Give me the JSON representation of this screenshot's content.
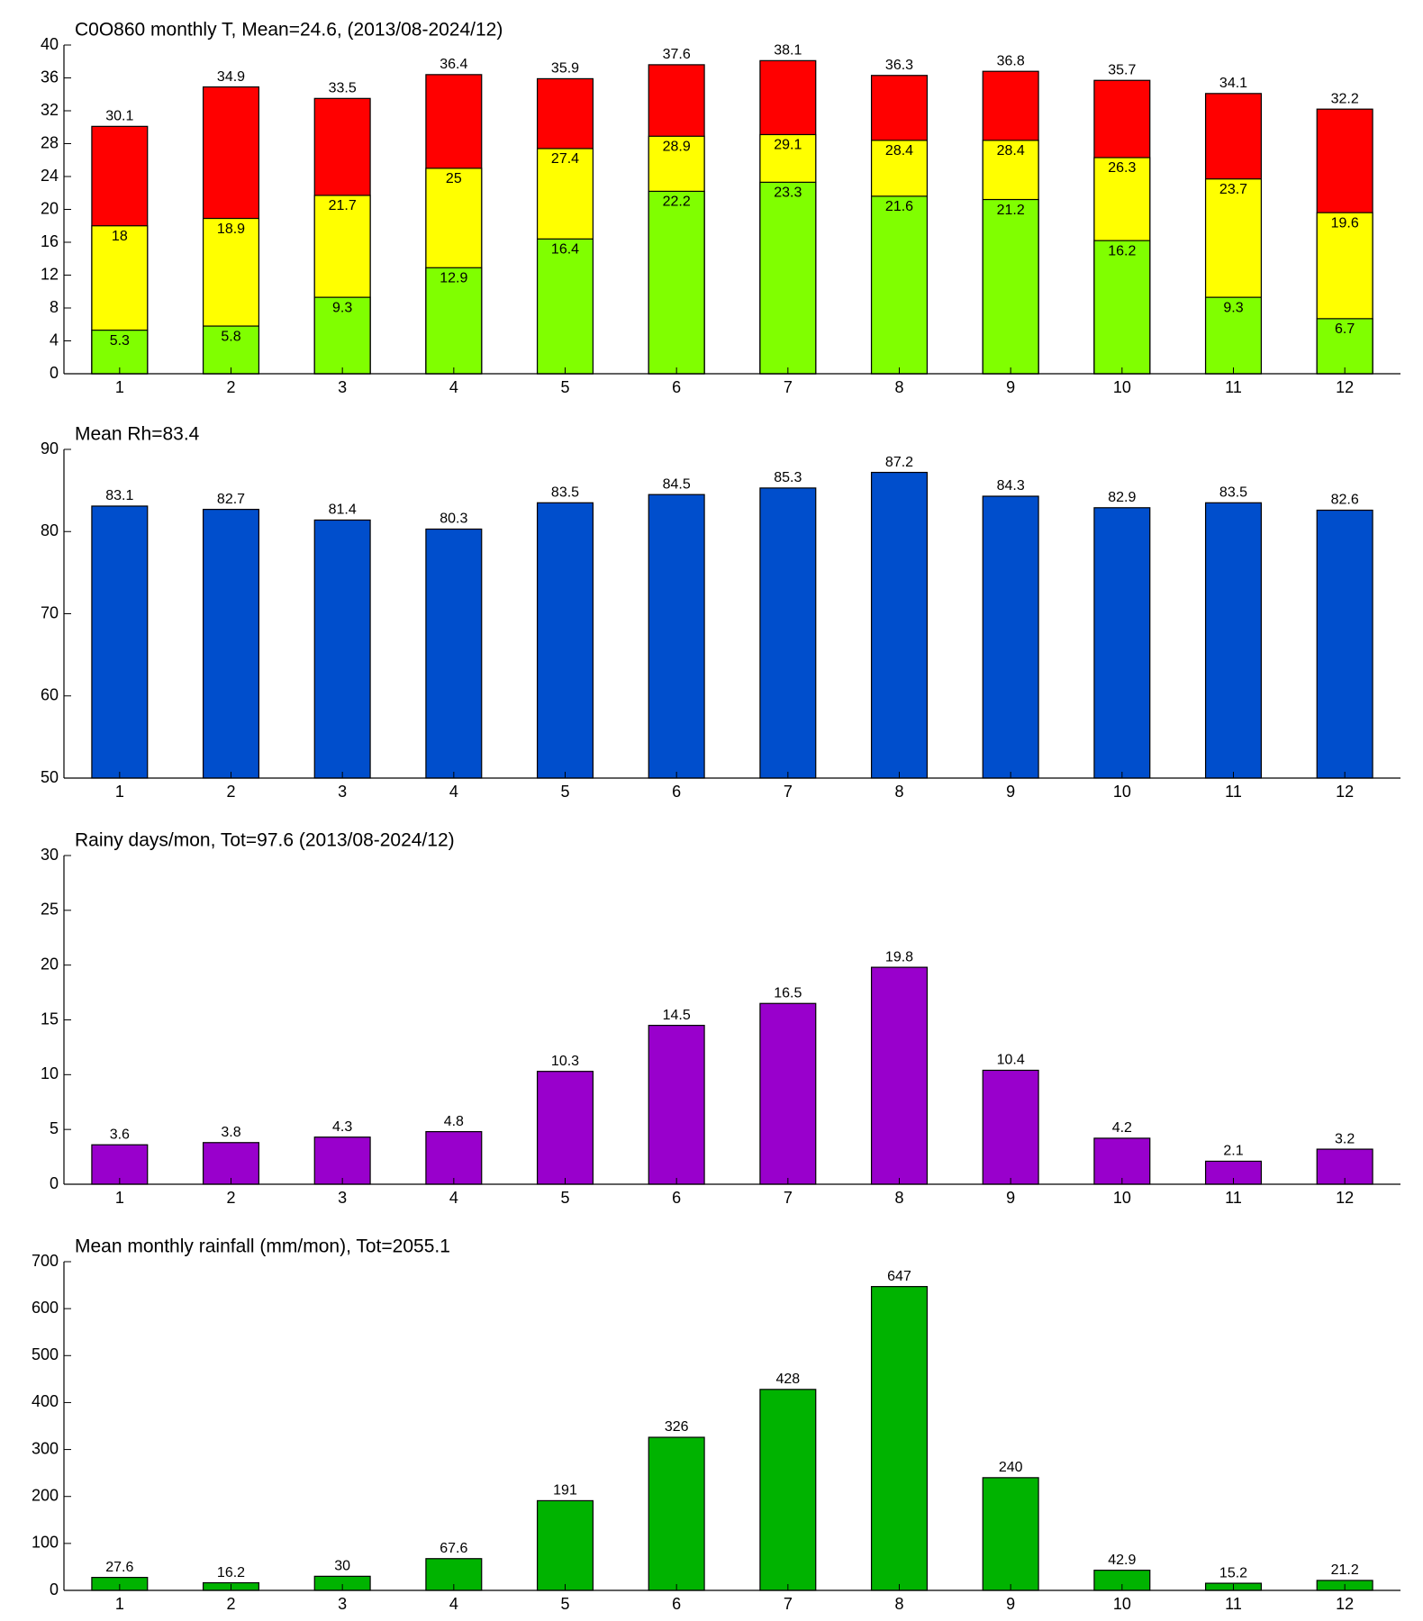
{
  "chart_data": [
    {
      "type": "bar",
      "title": "C0O860 monthly T, Mean=24.6, (2013/08-2024/12)",
      "categories": [
        1,
        2,
        3,
        4,
        5,
        6,
        7,
        8,
        9,
        10,
        11,
        12
      ],
      "series": [
        {
          "color": "#ff0000",
          "values": [
            30.1,
            34.9,
            33.5,
            36.4,
            35.9,
            37.6,
            38.1,
            36.3,
            36.8,
            35.7,
            34.1,
            32.2
          ]
        },
        {
          "color": "#ffff00",
          "values": [
            18,
            18.9,
            21.7,
            25,
            27.4,
            28.9,
            29.1,
            28.4,
            28.4,
            26.3,
            23.7,
            19.6
          ]
        },
        {
          "color": "#80ff00",
          "values": [
            5.3,
            5.8,
            9.3,
            12.9,
            16.4,
            22.2,
            23.3,
            21.6,
            21.2,
            16.2,
            9.3,
            6.7
          ]
        }
      ],
      "barmode": "overlay",
      "ylim": [
        0,
        40
      ],
      "yticks": [
        0,
        4,
        8,
        12,
        16,
        20,
        24,
        28,
        32,
        36,
        40
      ]
    },
    {
      "type": "bar",
      "title": "Mean Rh=83.4",
      "categories": [
        1,
        2,
        3,
        4,
        5,
        6,
        7,
        8,
        9,
        10,
        11,
        12
      ],
      "values": [
        83.1,
        82.7,
        81.4,
        80.3,
        83.5,
        84.5,
        85.3,
        87.2,
        84.3,
        82.9,
        83.5,
        82.6
      ],
      "color": "#004ecc",
      "ylim": [
        50,
        90
      ],
      "yticks": [
        50,
        60,
        70,
        80,
        90
      ]
    },
    {
      "type": "bar",
      "title": "Rainy days/mon, Tot=97.6 (2013/08-2024/12)",
      "categories": [
        1,
        2,
        3,
        4,
        5,
        6,
        7,
        8,
        9,
        10,
        11,
        12
      ],
      "values": [
        3.6,
        3.8,
        4.3,
        4.8,
        10.3,
        14.5,
        16.5,
        19.8,
        10.4,
        4.2,
        2.1,
        3.2
      ],
      "color": "#9900cc",
      "ylim": [
        0,
        30
      ],
      "yticks": [
        0,
        5,
        10,
        15,
        20,
        25,
        30
      ]
    },
    {
      "type": "bar",
      "title": "Mean monthly rainfall (mm/mon), Tot=2055.1",
      "categories": [
        1,
        2,
        3,
        4,
        5,
        6,
        7,
        8,
        9,
        10,
        11,
        12
      ],
      "values": [
        27.6,
        16.2,
        30,
        67.6,
        191,
        326,
        428,
        647,
        240,
        42.9,
        15.2,
        21.2
      ],
      "color": "#00b300",
      "ylim": [
        0,
        700
      ],
      "yticks": [
        0,
        100,
        200,
        300,
        400,
        500,
        600,
        700
      ]
    }
  ]
}
